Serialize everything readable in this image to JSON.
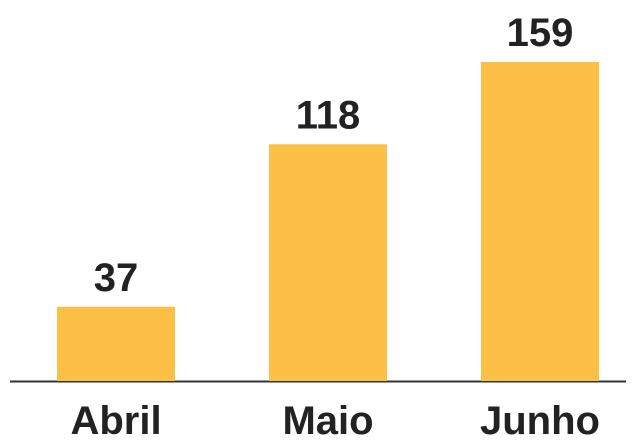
{
  "chart_data": {
    "type": "bar",
    "categories": [
      "Abril",
      "Maio",
      "Junho"
    ],
    "values": [
      37,
      118,
      159
    ],
    "color": "#fdc046"
  }
}
